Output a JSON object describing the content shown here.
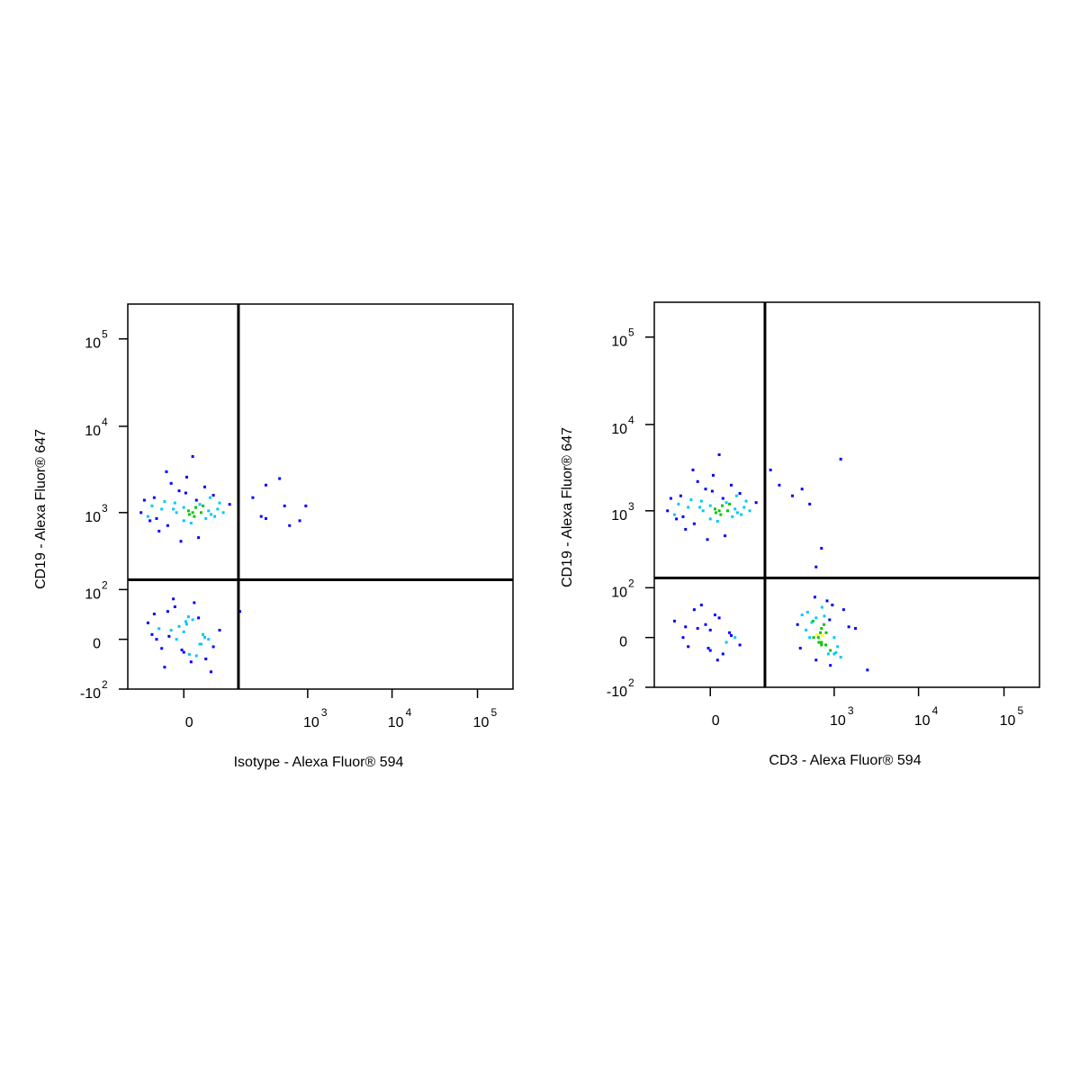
{
  "chart_data": [
    {
      "type": "scatter",
      "scale": "biexponential",
      "x_label": "Isotype - Alexa Fluor® 594",
      "y_label": "CD19 - Alexa Fluor® 647",
      "colormap": [
        "#0000ff",
        "#00c8ff",
        "#00c800",
        "#ffff00",
        "#ff0000"
      ],
      "xlim": [
        -130,
        260000
      ],
      "ylim": [
        -100,
        250000
      ],
      "xticks": [
        0,
        {
          "value": 1000,
          "label": "10",
          "exponent": "3"
        },
        {
          "value": 10000,
          "label": "10",
          "exponent": "4"
        },
        {
          "value": 100000,
          "label": "10",
          "exponent": "5"
        }
      ],
      "yticks": [
        {
          "value": -100,
          "label": "-10",
          "exponent": "2"
        },
        0,
        {
          "value": 100,
          "label": "10",
          "exponent": "2"
        },
        {
          "value": 1000,
          "label": "10",
          "exponent": "3"
        },
        {
          "value": 10000,
          "label": "10",
          "exponent": "4"
        },
        {
          "value": 100000,
          "label": "10",
          "exponent": "5"
        }
      ],
      "gates": {
        "x": 124,
        "y": 140
      },
      "x": [
        -60,
        -30,
        -10,
        0,
        10,
        25,
        40,
        -45,
        -20,
        5,
        15,
        30,
        55,
        -80,
        -5,
        20,
        -35,
        0,
        12,
        45,
        70,
        -15,
        8,
        -25,
        35,
        -50,
        18,
        -8,
        2,
        60,
        -40,
        28,
        -12,
        6,
        90,
        -70,
        14,
        -22,
        48,
        3,
        -55,
        22,
        -3,
        38,
        10,
        -40,
        -15,
        0,
        10,
        25,
        -30,
        5,
        20,
        -5,
        35,
        -60,
        15,
        -20,
        0,
        45,
        -10,
        8,
        -35,
        28,
        -2,
        12,
        -50,
        30,
        3,
        -25,
        18,
        -8,
        60,
        -45,
        6,
        22,
        -12,
        2,
        40,
        -18,
        200,
        260,
        300,
        450,
        520,
        600,
        800,
        950,
        300,
        130
      ],
      "y": [
        900,
        1100,
        1300,
        800,
        1000,
        1200,
        950,
        1500,
        700,
        1050,
        1400,
        850,
        1100,
        1000,
        1800,
        1250,
        600,
        1150,
        900,
        1600,
        1000,
        2200,
        750,
        1350,
        1050,
        1200,
        500,
        1000,
        1700,
        1300,
        850,
        2000,
        1100,
        950,
        1250,
        1400,
        1150,
        3000,
        900,
        2600,
        800,
        1000,
        450,
        1500,
        4500,
        0,
        10,
        -15,
        25,
        5,
        -10,
        30,
        -5,
        15,
        0,
        20,
        -20,
        40,
        8,
        -8,
        50,
        -30,
        12,
        2,
        -12,
        60,
        5,
        -25,
        18,
        -40,
        28,
        0,
        10,
        35,
        -18,
        -5,
        70,
        22,
        -50,
        3,
        1500,
        900,
        850,
        2500,
        1200,
        700,
        800,
        1200,
        2100,
        40
      ]
    },
    {
      "type": "scatter",
      "scale": "biexponential",
      "x_label": "CD3 - Alexa Fluor® 594",
      "y_label": "CD19 - Alexa Fluor® 647",
      "colormap": [
        "#0000ff",
        "#00c8ff",
        "#00c800",
        "#ffff00",
        "#ff0000"
      ],
      "xlim": [
        -130,
        260000
      ],
      "ylim": [
        -100,
        250000
      ],
      "xticks": [
        0,
        {
          "value": 1000,
          "label": "10",
          "exponent": "3"
        },
        {
          "value": 10000,
          "label": "10",
          "exponent": "4"
        },
        {
          "value": 100000,
          "label": "10",
          "exponent": "5"
        }
      ],
      "yticks": [
        {
          "value": -100,
          "label": "-10",
          "exponent": "2"
        },
        0,
        {
          "value": 100,
          "label": "10",
          "exponent": "2"
        },
        {
          "value": 1000,
          "label": "10",
          "exponent": "3"
        },
        {
          "value": 10000,
          "label": "10",
          "exponent": "4"
        },
        {
          "value": 100000,
          "label": "10",
          "exponent": "5"
        }
      ],
      "gates": {
        "x": 124,
        "y": 140
      },
      "x": [
        -60,
        -30,
        -10,
        0,
        10,
        25,
        40,
        -45,
        -20,
        5,
        15,
        30,
        55,
        -80,
        -5,
        20,
        -35,
        0,
        12,
        45,
        70,
        -15,
        8,
        -25,
        35,
        -50,
        18,
        -8,
        2,
        60,
        -40,
        28,
        -12,
        6,
        90,
        -70,
        14,
        -22,
        48,
        3,
        -55,
        22,
        -3,
        38,
        10,
        -40,
        -15,
        0,
        10,
        25,
        -30,
        5,
        20,
        -5,
        35,
        -60,
        15,
        -20,
        0,
        45,
        -10,
        8,
        -35,
        28,
        -2,
        500,
        700,
        900,
        600,
        800,
        1100,
        400,
        650,
        750,
        1000,
        550,
        850,
        1300,
        450,
        700,
        950,
        600,
        1500,
        720,
        380,
        820,
        680,
        1200,
        530,
        900,
        760,
        640,
        1800,
        470,
        1050,
        700,
        580,
        880,
        2500,
        620,
        790,
        350,
        1000,
        710,
        560,
        150,
        200,
        300,
        400,
        500,
        1200,
        600,
        700
      ],
      "y": [
        900,
        1100,
        1300,
        800,
        1000,
        1200,
        950,
        1500,
        700,
        1050,
        1400,
        850,
        1100,
        1000,
        1800,
        1250,
        600,
        1150,
        900,
        1600,
        1000,
        2200,
        750,
        1350,
        1050,
        1200,
        500,
        1000,
        1700,
        1300,
        850,
        2000,
        1100,
        950,
        1250,
        1400,
        1150,
        3000,
        900,
        2600,
        800,
        1000,
        450,
        1500,
        4500,
        0,
        10,
        -15,
        25,
        5,
        -10,
        30,
        -5,
        15,
        0,
        20,
        -20,
        40,
        8,
        -8,
        50,
        -30,
        12,
        2,
        -12,
        0,
        10,
        -15,
        25,
        5,
        -10,
        30,
        -5,
        15,
        0,
        20,
        -20,
        40,
        8,
        -8,
        50,
        -30,
        12,
        2,
        -12,
        60,
        5,
        -25,
        18,
        -40,
        28,
        0,
        10,
        35,
        -18,
        -5,
        70,
        22,
        -50,
        3,
        -8,
        15,
        -20,
        45,
        0,
        3000,
        2000,
        1500,
        1800,
        1200,
        4000,
        200,
        350
      ]
    }
  ]
}
